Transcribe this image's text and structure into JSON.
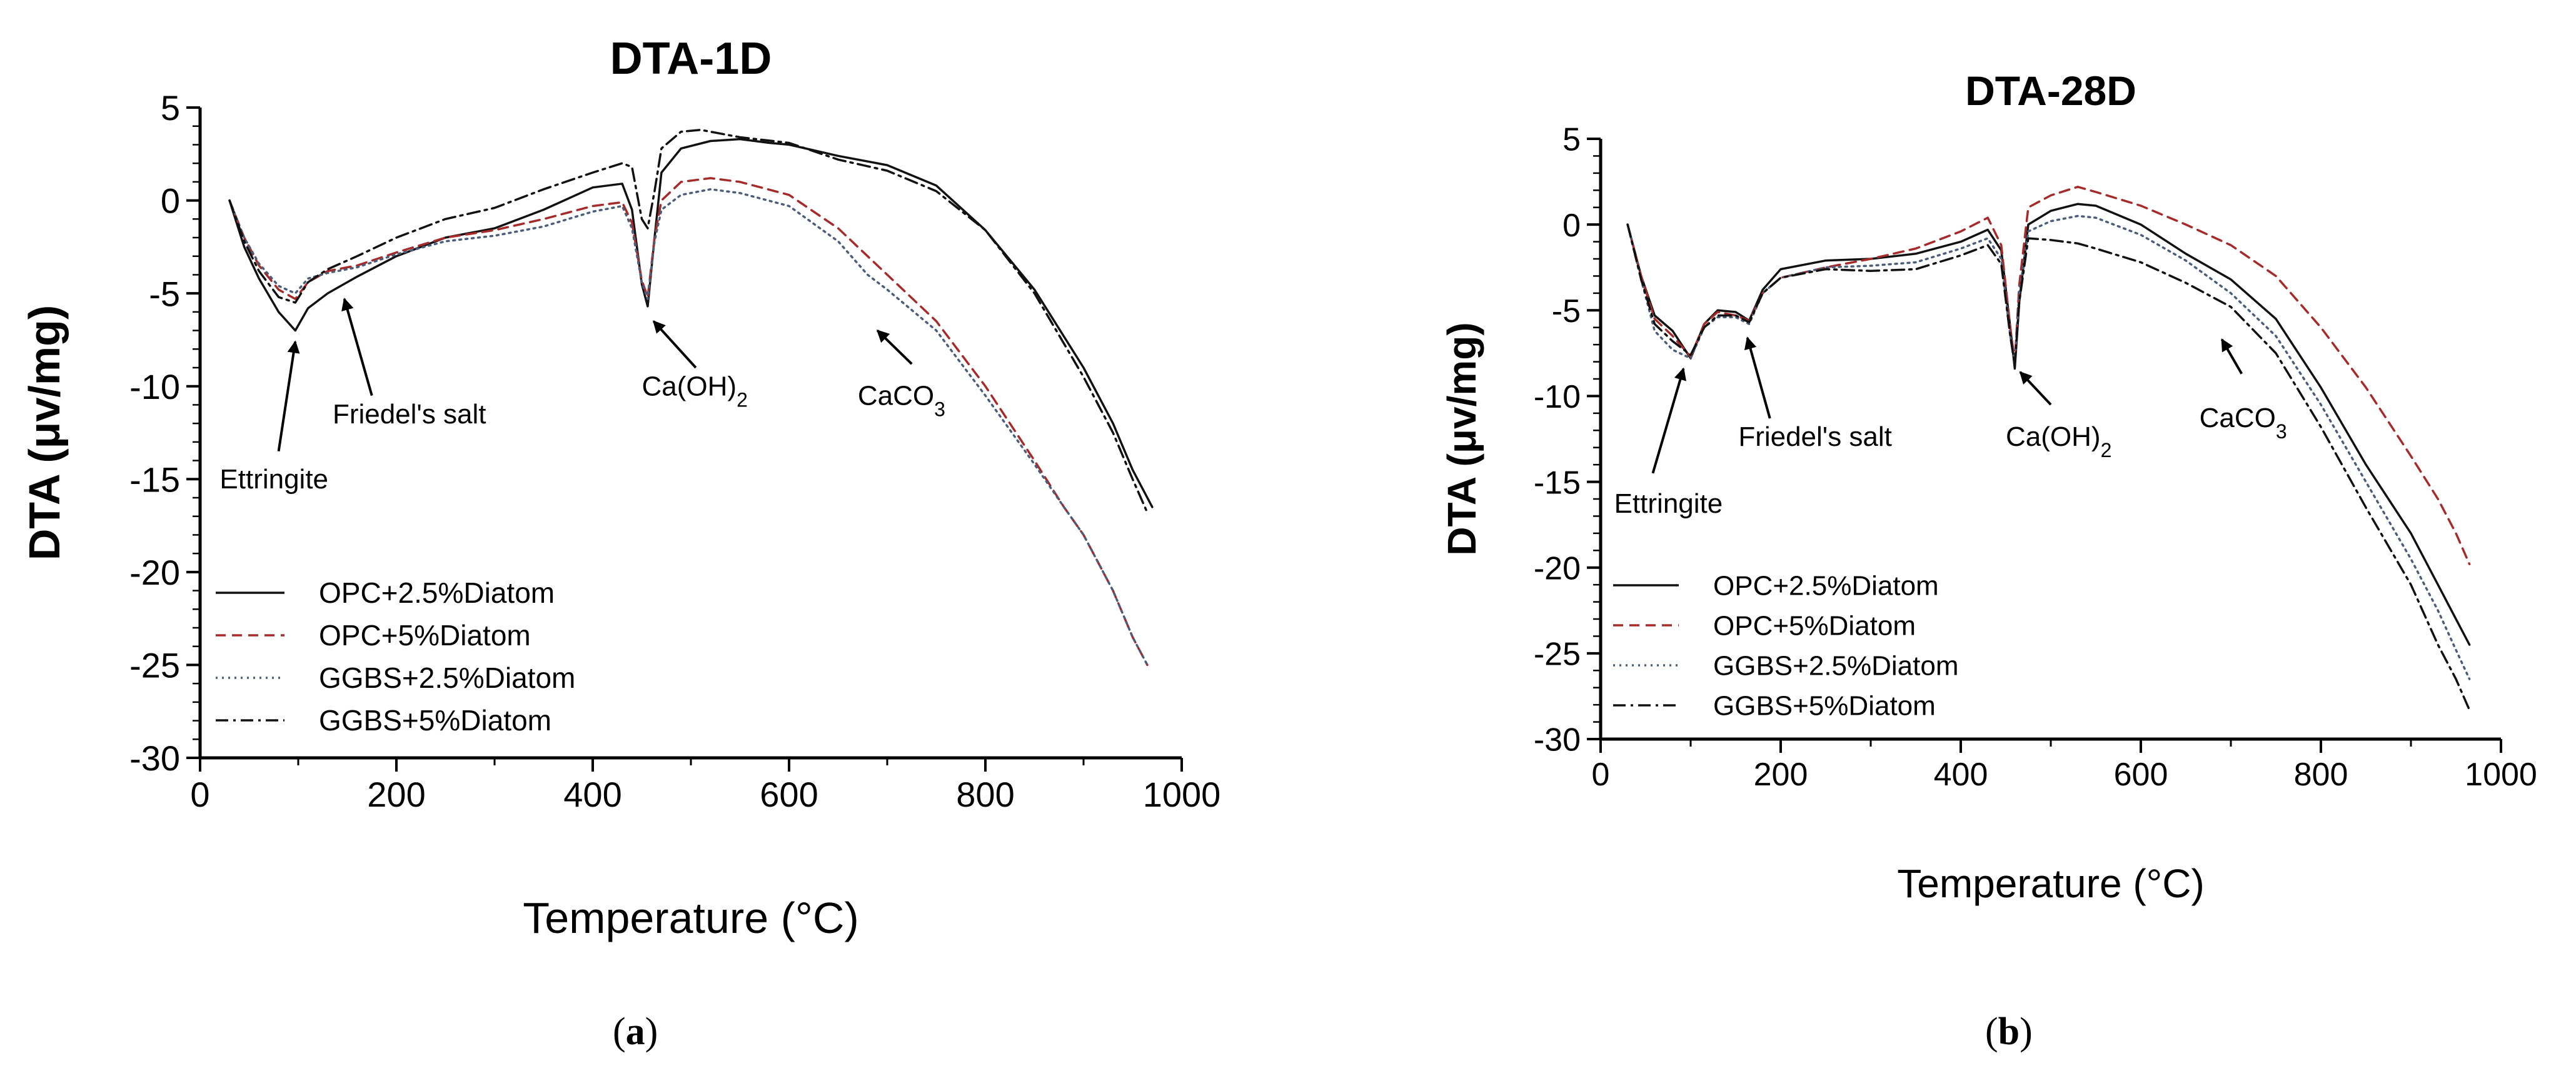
{
  "figure": {
    "panel_labels": [
      {
        "open": "(",
        "letter": "a",
        "close": ")"
      },
      {
        "open": "(",
        "letter": "b",
        "close": ")"
      }
    ]
  },
  "colors": {
    "axis": "#000000",
    "series": [
      "#111111",
      "#a52a2a",
      "#4a5d7a",
      "#111111"
    ]
  },
  "chart_data": [
    {
      "type": "line",
      "title": "DTA-1D",
      "xlabel": "Temperature (°C)",
      "ylabel": "DTA (μv/mg)",
      "xlim": [
        0,
        1000
      ],
      "ylim": [
        -30,
        5
      ],
      "xticks": [
        0,
        200,
        400,
        600,
        800,
        1000
      ],
      "yticks": [
        5,
        0,
        -5,
        -10,
        -15,
        -20,
        -25,
        -30
      ],
      "legend_position": "bottom-left",
      "series": [
        {
          "name": "OPC+2.5%Diatom",
          "style": "solid",
          "x": [
            30,
            45,
            60,
            80,
            97,
            110,
            130,
            160,
            200,
            250,
            300,
            350,
            400,
            430,
            440,
            450,
            456,
            463,
            470,
            490,
            520,
            550,
            580,
            600,
            650,
            700,
            750,
            800,
            850,
            900,
            930,
            950,
            970
          ],
          "y": [
            0,
            -2.5,
            -4.2,
            -6,
            -7,
            -5.8,
            -5,
            -4.1,
            -3,
            -2,
            -1.5,
            -0.5,
            0.7,
            0.9,
            -0.5,
            -4.5,
            -5.7,
            -2,
            1.5,
            2.8,
            3.2,
            3.3,
            3.1,
            3,
            2.4,
            1.9,
            0.8,
            -1.6,
            -4.8,
            -9,
            -12,
            -14.5,
            -16.5
          ]
        },
        {
          "name": "OPC+5%Diatom",
          "style": "dashed",
          "x": [
            30,
            45,
            60,
            80,
            97,
            110,
            130,
            160,
            200,
            250,
            300,
            350,
            400,
            430,
            440,
            450,
            456,
            463,
            470,
            490,
            520,
            550,
            600,
            650,
            680,
            700,
            750,
            800,
            850,
            880,
            900,
            930,
            950,
            965
          ],
          "y": [
            0,
            -2,
            -3.5,
            -4.8,
            -5.3,
            -4.4,
            -3.8,
            -3.5,
            -2.8,
            -2,
            -1.6,
            -1,
            -0.3,
            -0.1,
            -1.2,
            -4.3,
            -5.2,
            -2,
            0,
            1,
            1.2,
            1,
            0.3,
            -1.5,
            -3,
            -4,
            -6.5,
            -10,
            -14,
            -16.5,
            -18,
            -21,
            -23.5,
            -25
          ]
        },
        {
          "name": "GGBS+2.5%Diatom",
          "style": "dotted",
          "x": [
            30,
            45,
            60,
            80,
            97,
            110,
            130,
            160,
            200,
            250,
            300,
            350,
            400,
            430,
            440,
            450,
            456,
            463,
            470,
            490,
            520,
            550,
            600,
            650,
            680,
            700,
            750,
            800,
            850,
            880,
            900,
            930,
            950,
            965
          ],
          "y": [
            0,
            -2,
            -3.4,
            -4.6,
            -5,
            -4.2,
            -3.9,
            -3.6,
            -2.9,
            -2.2,
            -1.9,
            -1.4,
            -0.6,
            -0.3,
            -1.5,
            -4.4,
            -5.3,
            -2.2,
            -0.5,
            0.3,
            0.6,
            0.4,
            -0.3,
            -2.2,
            -4,
            -4.8,
            -7,
            -10.5,
            -14.2,
            -16.5,
            -18,
            -21,
            -23.5,
            -25
          ]
        },
        {
          "name": "GGBS+5%Diatom",
          "style": "dashdot",
          "x": [
            30,
            45,
            60,
            80,
            97,
            110,
            130,
            160,
            200,
            250,
            300,
            350,
            400,
            430,
            440,
            450,
            456,
            463,
            470,
            490,
            510,
            550,
            600,
            650,
            700,
            750,
            800,
            850,
            900,
            930,
            950,
            965
          ],
          "y": [
            0,
            -2.2,
            -3.8,
            -5.2,
            -5.5,
            -4.4,
            -3.7,
            -3,
            -2,
            -1,
            -0.4,
            0.6,
            1.5,
            2,
            1.8,
            -1,
            -1.5,
            0.5,
            2.8,
            3.7,
            3.8,
            3.4,
            3.1,
            2.2,
            1.6,
            0.5,
            -1.6,
            -5,
            -9.5,
            -12.5,
            -15,
            -16.8
          ]
        }
      ],
      "annotations": [
        {
          "text": "Ettringite",
          "sub": "",
          "x": 20,
          "y": -15.5,
          "arrow_from": [
            80,
            -13.5
          ],
          "arrow_to": [
            97,
            -7.6
          ]
        },
        {
          "text": "Friedel's salt",
          "sub": "",
          "x": 135,
          "y": -12,
          "arrow_from": [
            175,
            -10.5
          ],
          "arrow_to": [
            147,
            -5.3
          ]
        },
        {
          "text": "Ca(OH)",
          "sub": "2",
          "x": 450,
          "y": -10.5,
          "arrow_from": [
            505,
            -9
          ],
          "arrow_to": [
            462,
            -6.5
          ]
        },
        {
          "text": "CaCO",
          "sub": "3",
          "x": 670,
          "y": -11,
          "arrow_from": [
            725,
            -8.8
          ],
          "arrow_to": [
            690,
            -7
          ]
        }
      ]
    },
    {
      "type": "line",
      "title": "DTA-28D",
      "xlabel": "Temperature (°C)",
      "ylabel": "DTA (μv/mg)",
      "xlim": [
        0,
        1000
      ],
      "ylim": [
        -30,
        5
      ],
      "xticks": [
        0,
        200,
        400,
        600,
        800,
        1000
      ],
      "yticks": [
        5,
        0,
        -5,
        -10,
        -15,
        -20,
        -25,
        -30
      ],
      "legend_position": "bottom-left",
      "series": [
        {
          "name": "OPC+2.5%Diatom",
          "style": "solid",
          "x": [
            30,
            45,
            60,
            80,
            100,
            115,
            130,
            150,
            165,
            180,
            200,
            250,
            300,
            350,
            400,
            430,
            445,
            455,
            460,
            465,
            475,
            500,
            530,
            550,
            600,
            650,
            700,
            750,
            800,
            850,
            900,
            930,
            950,
            965
          ],
          "y": [
            0,
            -3,
            -5.3,
            -6.2,
            -7.8,
            -5.8,
            -5,
            -5.1,
            -5.6,
            -3.8,
            -2.6,
            -2.1,
            -2,
            -1.7,
            -1,
            -0.3,
            -1.5,
            -6,
            -8.4,
            -4.5,
            0,
            0.8,
            1.2,
            1.1,
            0,
            -1.7,
            -3.2,
            -5.5,
            -9.5,
            -14,
            -18,
            -21,
            -23,
            -24.5
          ]
        },
        {
          "name": "OPC+5%Diatom",
          "style": "dashed",
          "x": [
            30,
            45,
            60,
            80,
            100,
            115,
            130,
            150,
            165,
            180,
            200,
            250,
            300,
            350,
            400,
            430,
            445,
            455,
            460,
            465,
            475,
            500,
            530,
            550,
            600,
            650,
            700,
            750,
            800,
            850,
            900,
            930,
            950,
            965
          ],
          "y": [
            0,
            -3,
            -5.5,
            -6.5,
            -7.7,
            -5.8,
            -5.1,
            -5.3,
            -5.6,
            -4,
            -3.1,
            -2.5,
            -2,
            -1.4,
            -0.4,
            0.4,
            -1.2,
            -6,
            -8,
            -3.5,
            1,
            1.7,
            2.2,
            1.9,
            1.1,
            0,
            -1.2,
            -3,
            -6,
            -9.5,
            -13.5,
            -16,
            -18,
            -19.8
          ]
        },
        {
          "name": "GGBS+2.5%Diatom",
          "style": "dotted",
          "x": [
            30,
            45,
            60,
            80,
            100,
            115,
            130,
            150,
            165,
            180,
            200,
            250,
            300,
            350,
            400,
            430,
            445,
            455,
            460,
            465,
            475,
            500,
            530,
            550,
            600,
            650,
            700,
            750,
            800,
            850,
            900,
            930,
            950,
            965
          ],
          "y": [
            0,
            -3.2,
            -6.2,
            -7.3,
            -7.8,
            -6,
            -5.4,
            -5.4,
            -5.8,
            -4,
            -3.1,
            -2.5,
            -2.4,
            -2.2,
            -1.4,
            -0.8,
            -2,
            -6.5,
            -8,
            -4,
            -0.4,
            0.2,
            0.5,
            0.4,
            -0.6,
            -2.1,
            -4,
            -6.5,
            -10.5,
            -15,
            -19.5,
            -22.5,
            -24.8,
            -26.5
          ]
        },
        {
          "name": "GGBS+5%Diatom",
          "style": "dashdot",
          "x": [
            30,
            45,
            60,
            80,
            100,
            115,
            130,
            150,
            165,
            180,
            200,
            250,
            300,
            350,
            400,
            430,
            445,
            455,
            460,
            465,
            475,
            500,
            530,
            550,
            600,
            650,
            700,
            750,
            800,
            850,
            900,
            930,
            950,
            965
          ],
          "y": [
            0,
            -3.2,
            -5.8,
            -6.8,
            -7.6,
            -6,
            -5.3,
            -5.3,
            -5.7,
            -4,
            -3.1,
            -2.6,
            -2.7,
            -2.6,
            -1.8,
            -1.2,
            -2.3,
            -6.5,
            -8.2,
            -4.5,
            -0.8,
            -0.9,
            -1.1,
            -1.4,
            -2.2,
            -3.4,
            -4.8,
            -7.5,
            -11.8,
            -16.5,
            -21,
            -24.5,
            -26.5,
            -28.3
          ]
        }
      ],
      "annotations": [
        {
          "text": "Ettringite",
          "sub": "",
          "x": 15,
          "y": -16.8,
          "arrow_from": [
            58,
            -14.5
          ],
          "arrow_to": [
            92,
            -8.4
          ]
        },
        {
          "text": "Friedel's salt",
          "sub": "",
          "x": 153,
          "y": -12.9,
          "arrow_from": [
            188,
            -11.3
          ],
          "arrow_to": [
            163,
            -6.6
          ]
        },
        {
          "text": "Ca(OH)",
          "sub": "2",
          "x": 450,
          "y": -12.9,
          "arrow_from": [
            500,
            -10.5
          ],
          "arrow_to": [
            466,
            -8.6
          ]
        },
        {
          "text": "CaCO",
          "sub": "3",
          "x": 665,
          "y": -11.8,
          "arrow_from": [
            712,
            -8.7
          ],
          "arrow_to": [
            690,
            -6.7
          ]
        }
      ]
    }
  ]
}
